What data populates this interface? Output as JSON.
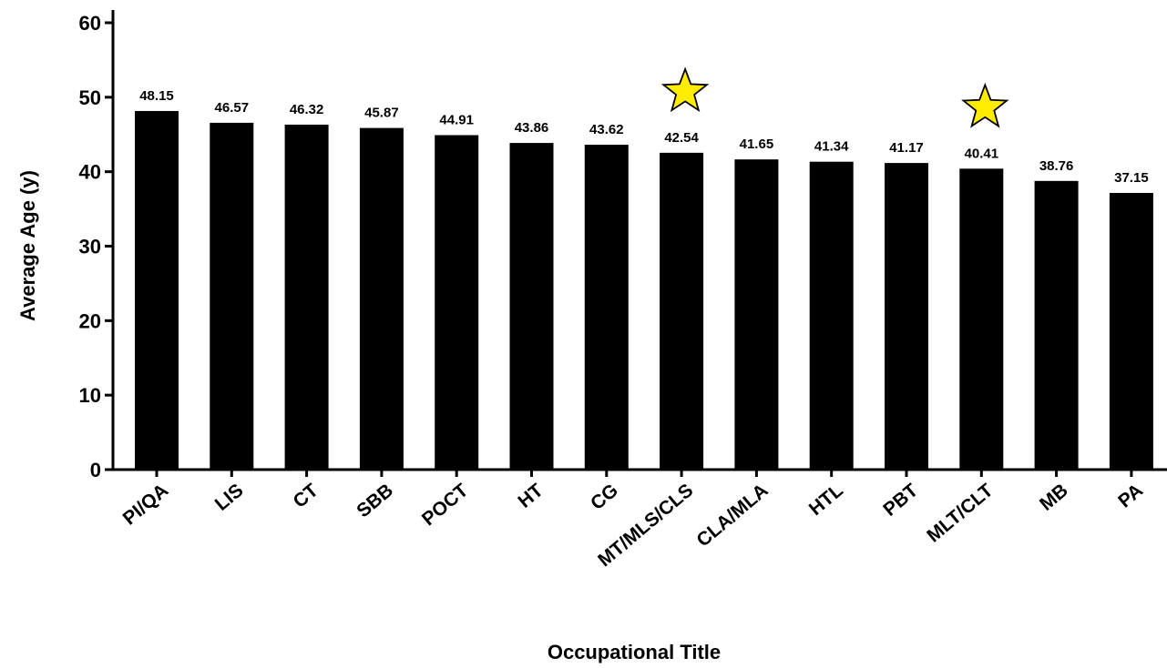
{
  "chart_data": {
    "type": "bar",
    "xlabel": "Occupational Title",
    "ylabel": "Average Age (y)",
    "ylim": [
      0,
      60
    ],
    "yticks": [
      "0",
      "10",
      "20",
      "30",
      "40",
      "50",
      "60"
    ],
    "grid": false,
    "categories": [
      "PI/QA",
      "LIS",
      "CT",
      "SBB",
      "POCT",
      "HT",
      "CG",
      "MT/MLS/CLS",
      "CLA/MLA",
      "HTL",
      "PBT",
      "MLT/CLT",
      "MB",
      "PA"
    ],
    "values": [
      48.15,
      46.57,
      46.32,
      45.87,
      44.91,
      43.86,
      43.62,
      42.54,
      41.65,
      41.34,
      41.17,
      40.41,
      38.76,
      37.15
    ],
    "value_labels": [
      "48.15",
      "46.57",
      "46.32",
      "45.87",
      "44.91",
      "43.86",
      "43.62",
      "42.54",
      "41.65",
      "41.34",
      "41.17",
      "40.41",
      "38.76",
      "37.15"
    ],
    "highlighted": [
      "MT/MLS/CLS",
      "MLT/CLT"
    ],
    "highlight_marker": "star-icon",
    "bar_color": "#000000",
    "star_fill": "#ffec00",
    "star_stroke": "#000000"
  }
}
